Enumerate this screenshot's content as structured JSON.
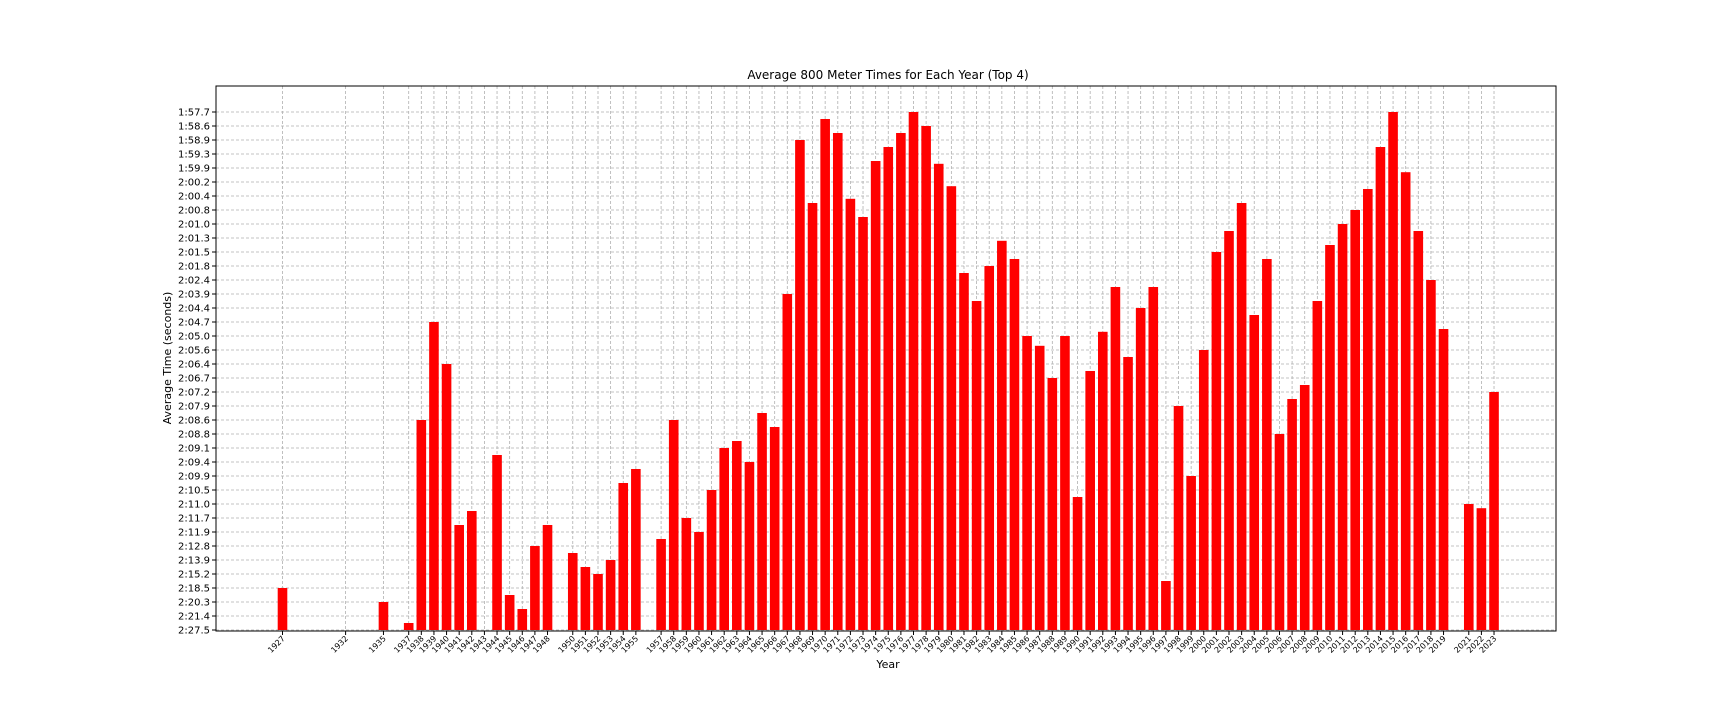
{
  "chart_data": {
    "type": "bar",
    "title": "Average 800 Meter Times for Each Year (Top 4)",
    "xlabel": "Year",
    "ylabel": "Average Time (seconds)",
    "bar_color": "#ff0000",
    "grid": true,
    "y_tick_labels": [
      "2:27.5",
      "2:21.4",
      "2:20.3",
      "2:18.5",
      "2:15.2",
      "2:13.9",
      "2:12.8",
      "2:11.9",
      "2:11.7",
      "2:11.0",
      "2:10.5",
      "2:09.9",
      "2:09.4",
      "2:09.1",
      "2:08.8",
      "2:08.6",
      "2:07.9",
      "2:07.2",
      "2:06.7",
      "2:06.4",
      "2:05.6",
      "2:05.0",
      "2:04.7",
      "2:04.4",
      "2:03.9",
      "2:02.4",
      "2:01.8",
      "2:01.5",
      "2:01.3",
      "2:01.0",
      "2:00.8",
      "2:00.4",
      "2:00.2",
      "1:59.9",
      "1:59.3",
      "1:58.9",
      "1:58.6",
      "1:57.7"
    ],
    "categories": [
      "1927",
      "1932",
      "1935",
      "1937",
      "1938",
      "1939",
      "1940",
      "1941",
      "1942",
      "1943",
      "1944",
      "1945",
      "1946",
      "1947",
      "1948",
      "1950",
      "1951",
      "1952",
      "1953",
      "1954",
      "1955",
      "1957",
      "1958",
      "1959",
      "1960",
      "1961",
      "1962",
      "1963",
      "1964",
      "1965",
      "1966",
      "1967",
      "1968",
      "1969",
      "1970",
      "1971",
      "1972",
      "1973",
      "1974",
      "1975",
      "1976",
      "1977",
      "1978",
      "1979",
      "1980",
      "1981",
      "1982",
      "1983",
      "1984",
      "1985",
      "1986",
      "1987",
      "1988",
      "1989",
      "1990",
      "1991",
      "1992",
      "1993",
      "1994",
      "1995",
      "1996",
      "1997",
      "1998",
      "1999",
      "2000",
      "2001",
      "2002",
      "2003",
      "2004",
      "2005",
      "2006",
      "2007",
      "2008",
      "2009",
      "2010",
      "2011",
      "2012",
      "2013",
      "2014",
      "2015",
      "2016",
      "2017",
      "2018",
      "2019",
      "2021",
      "2022",
      "2023"
    ],
    "values_rank": [
      3,
      null,
      2,
      0.5,
      15,
      22,
      19,
      7.5,
      8.5,
      null,
      12.5,
      2.5,
      1.5,
      6,
      7.5,
      5.5,
      4.5,
      4,
      5,
      10.5,
      11.5,
      6.5,
      15,
      8,
      7,
      10,
      13,
      13.5,
      12,
      15.5,
      14.5,
      24,
      35,
      30.5,
      36.5,
      35.5,
      30.8,
      29.5,
      33.5,
      34.5,
      35.5,
      37,
      36,
      33.3,
      31.7,
      25.5,
      23.5,
      26,
      27.8,
      26.5,
      21,
      20.3,
      18,
      21,
      9.5,
      18.5,
      21.3,
      24.5,
      19.5,
      23,
      24.5,
      3.5,
      16,
      11,
      20,
      27,
      28.5,
      30.5,
      22.5,
      26.5,
      14,
      16.5,
      17.5,
      23.5,
      27.5,
      29,
      30,
      31.5,
      34.5,
      37,
      32.7,
      28.5,
      25,
      21.5,
      9,
      8.7,
      17
    ]
  }
}
